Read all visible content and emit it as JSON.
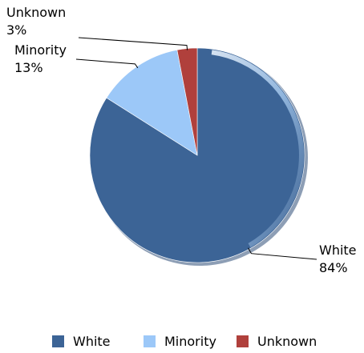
{
  "chart_data": {
    "type": "pie",
    "title": "",
    "slices": [
      {
        "name": "White",
        "value": 84,
        "label": "84%",
        "color": "#3C6496"
      },
      {
        "name": "Minority",
        "value": 13,
        "label": "13%",
        "color": "#9CC8F8"
      },
      {
        "name": "Unknown",
        "value": 3,
        "label": "3%",
        "color": "#B0403C"
      }
    ],
    "legend": {
      "position": "bottom",
      "entries": [
        "White",
        "Minority",
        "Unknown"
      ]
    },
    "labels": {
      "show_percent": true,
      "leader_lines": true
    }
  }
}
